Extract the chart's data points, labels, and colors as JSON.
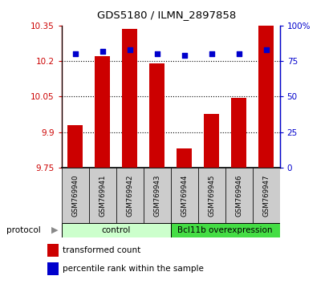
{
  "title": "GDS5180 / ILMN_2897858",
  "samples": [
    "GSM769940",
    "GSM769941",
    "GSM769942",
    "GSM769943",
    "GSM769944",
    "GSM769945",
    "GSM769946",
    "GSM769947"
  ],
  "transformed_counts": [
    9.93,
    10.22,
    10.335,
    10.19,
    9.83,
    9.975,
    10.045,
    10.35
  ],
  "percentile_ranks": [
    80,
    82,
    83,
    80,
    79,
    80,
    80,
    83
  ],
  "ylim_left": [
    9.75,
    10.35
  ],
  "ylim_right": [
    0,
    100
  ],
  "yticks_left": [
    9.75,
    9.9,
    10.05,
    10.2,
    10.35
  ],
  "yticks_right": [
    0,
    25,
    50,
    75,
    100
  ],
  "ytick_labels_left": [
    "9.75",
    "9.9",
    "10.05",
    "10.2",
    "10.35"
  ],
  "ytick_labels_right": [
    "0",
    "25",
    "50",
    "75",
    "100%"
  ],
  "bar_color": "#cc0000",
  "dot_color": "#0000cc",
  "bar_width": 0.55,
  "control_label": "control",
  "overexpression_label": "Bcl11b overexpression",
  "control_color": "#ccffcc",
  "overexpression_color": "#44dd44",
  "protocol_label": "protocol",
  "legend_bar_label": "transformed count",
  "legend_dot_label": "percentile rank within the sample",
  "xlabel_color": "#cc0000",
  "ylabel_right_color": "#0000cc",
  "tick_label_area_color": "#cccccc",
  "base_value": 9.75
}
